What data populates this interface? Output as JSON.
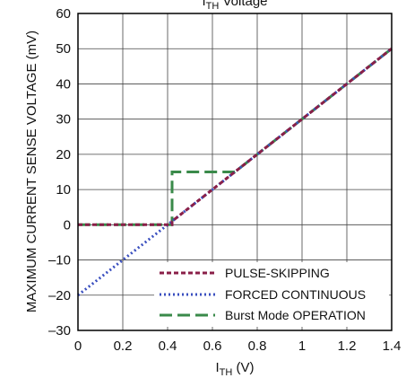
{
  "chart_data": {
    "type": "line",
    "title": "I",
    "title_subscript": "TH",
    "title_suffix": " Voltage",
    "xlabel": "I",
    "xlabel_subscript": "TH",
    "xlabel_suffix": " (V)",
    "ylabel": "MAXIMUM CURRENT SENSE VOLTAGE (mV)",
    "xlim": [
      0,
      1.4
    ],
    "ylim": [
      -30,
      60
    ],
    "x_ticks": [
      0,
      0.2,
      0.4,
      0.6,
      0.8,
      1,
      1.2,
      1.4
    ],
    "x_tick_labels": [
      "0",
      "0.2",
      "0.4",
      "0.6",
      "0.8",
      "1",
      "1.2",
      "1.4"
    ],
    "y_ticks": [
      -30,
      -20,
      -10,
      0,
      10,
      20,
      30,
      40,
      50,
      60
    ],
    "y_tick_labels": [
      "–30",
      "–20",
      "–10",
      "0",
      "10",
      "20",
      "30",
      "40",
      "50",
      "60"
    ],
    "grid": true,
    "legend_position": "bottom-right",
    "series": [
      {
        "name": "Burst Mode OPERATION",
        "color": "#3a8a4a",
        "dash": "long-dash",
        "points": [
          [
            0,
            0
          ],
          [
            0.42,
            0
          ],
          [
            0.42,
            15
          ],
          [
            0.7,
            15
          ],
          [
            1.4,
            50
          ]
        ]
      },
      {
        "name": "FORCED CONTINUOUS",
        "color": "#3a4fbf",
        "dash": "dotted",
        "points": [
          [
            0,
            -20
          ],
          [
            1.4,
            50
          ]
        ]
      },
      {
        "name": "PULSE-SKIPPING",
        "color": "#8a1f48",
        "dash": "short-dash",
        "points": [
          [
            0,
            0
          ],
          [
            0.42,
            0
          ],
          [
            0.42,
            1
          ],
          [
            1.4,
            50
          ]
        ]
      }
    ],
    "legend_order": [
      "PULSE-SKIPPING",
      "FORCED CONTINUOUS",
      "Burst Mode OPERATION"
    ]
  }
}
